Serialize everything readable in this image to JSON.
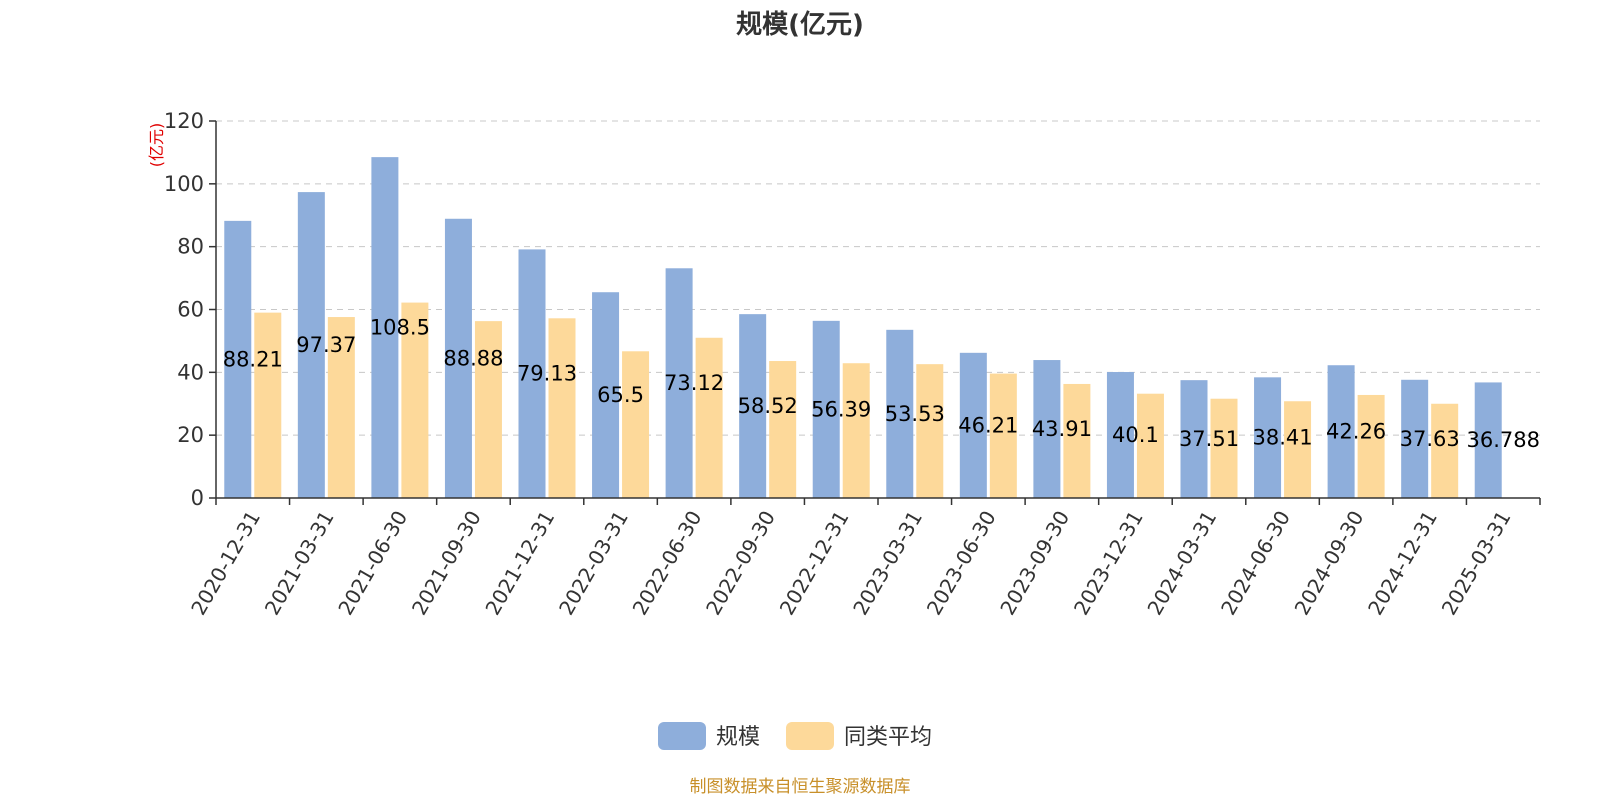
{
  "chart_data": {
    "type": "bar",
    "title": "规模(亿元)",
    "ylabel": "(亿元)",
    "ylim": [
      0,
      120
    ],
    "yticks": [
      0,
      20,
      40,
      60,
      80,
      100,
      120
    ],
    "grid": true,
    "legend_position": "bottom",
    "categories": [
      "2020-12-31",
      "2021-03-31",
      "2021-06-30",
      "2021-09-30",
      "2021-12-31",
      "2022-03-31",
      "2022-06-30",
      "2022-09-30",
      "2022-12-31",
      "2023-03-31",
      "2023-06-30",
      "2023-09-30",
      "2023-12-31",
      "2024-03-31",
      "2024-06-30",
      "2024-09-30",
      "2024-12-31",
      "2025-03-31"
    ],
    "series": [
      {
        "name": "规模",
        "color": "#8eaedb",
        "values": [
          88.21,
          97.37,
          108.5,
          88.88,
          79.13,
          65.5,
          73.12,
          58.52,
          56.39,
          53.53,
          46.21,
          43.91,
          40.1,
          37.51,
          38.41,
          42.26,
          37.63,
          36.788
        ],
        "labels": [
          "88.21",
          "97.37",
          "108.5",
          "88.88",
          "79.13",
          "65.5",
          "73.12",
          "58.52",
          "56.39",
          "53.53",
          "46.21",
          "43.91",
          "40.1",
          "37.51",
          "38.41",
          "42.26",
          "37.63",
          "36.788"
        ]
      },
      {
        "name": "同类平均",
        "color": "#fdd99a",
        "values": [
          59.0,
          57.6,
          62.2,
          56.3,
          57.2,
          46.7,
          51.0,
          43.6,
          42.9,
          42.6,
          39.6,
          36.3,
          33.2,
          31.6,
          30.8,
          32.8,
          30.0,
          null
        ]
      }
    ]
  },
  "footer": {
    "source": "制图数据来自恒生聚源数据库"
  }
}
